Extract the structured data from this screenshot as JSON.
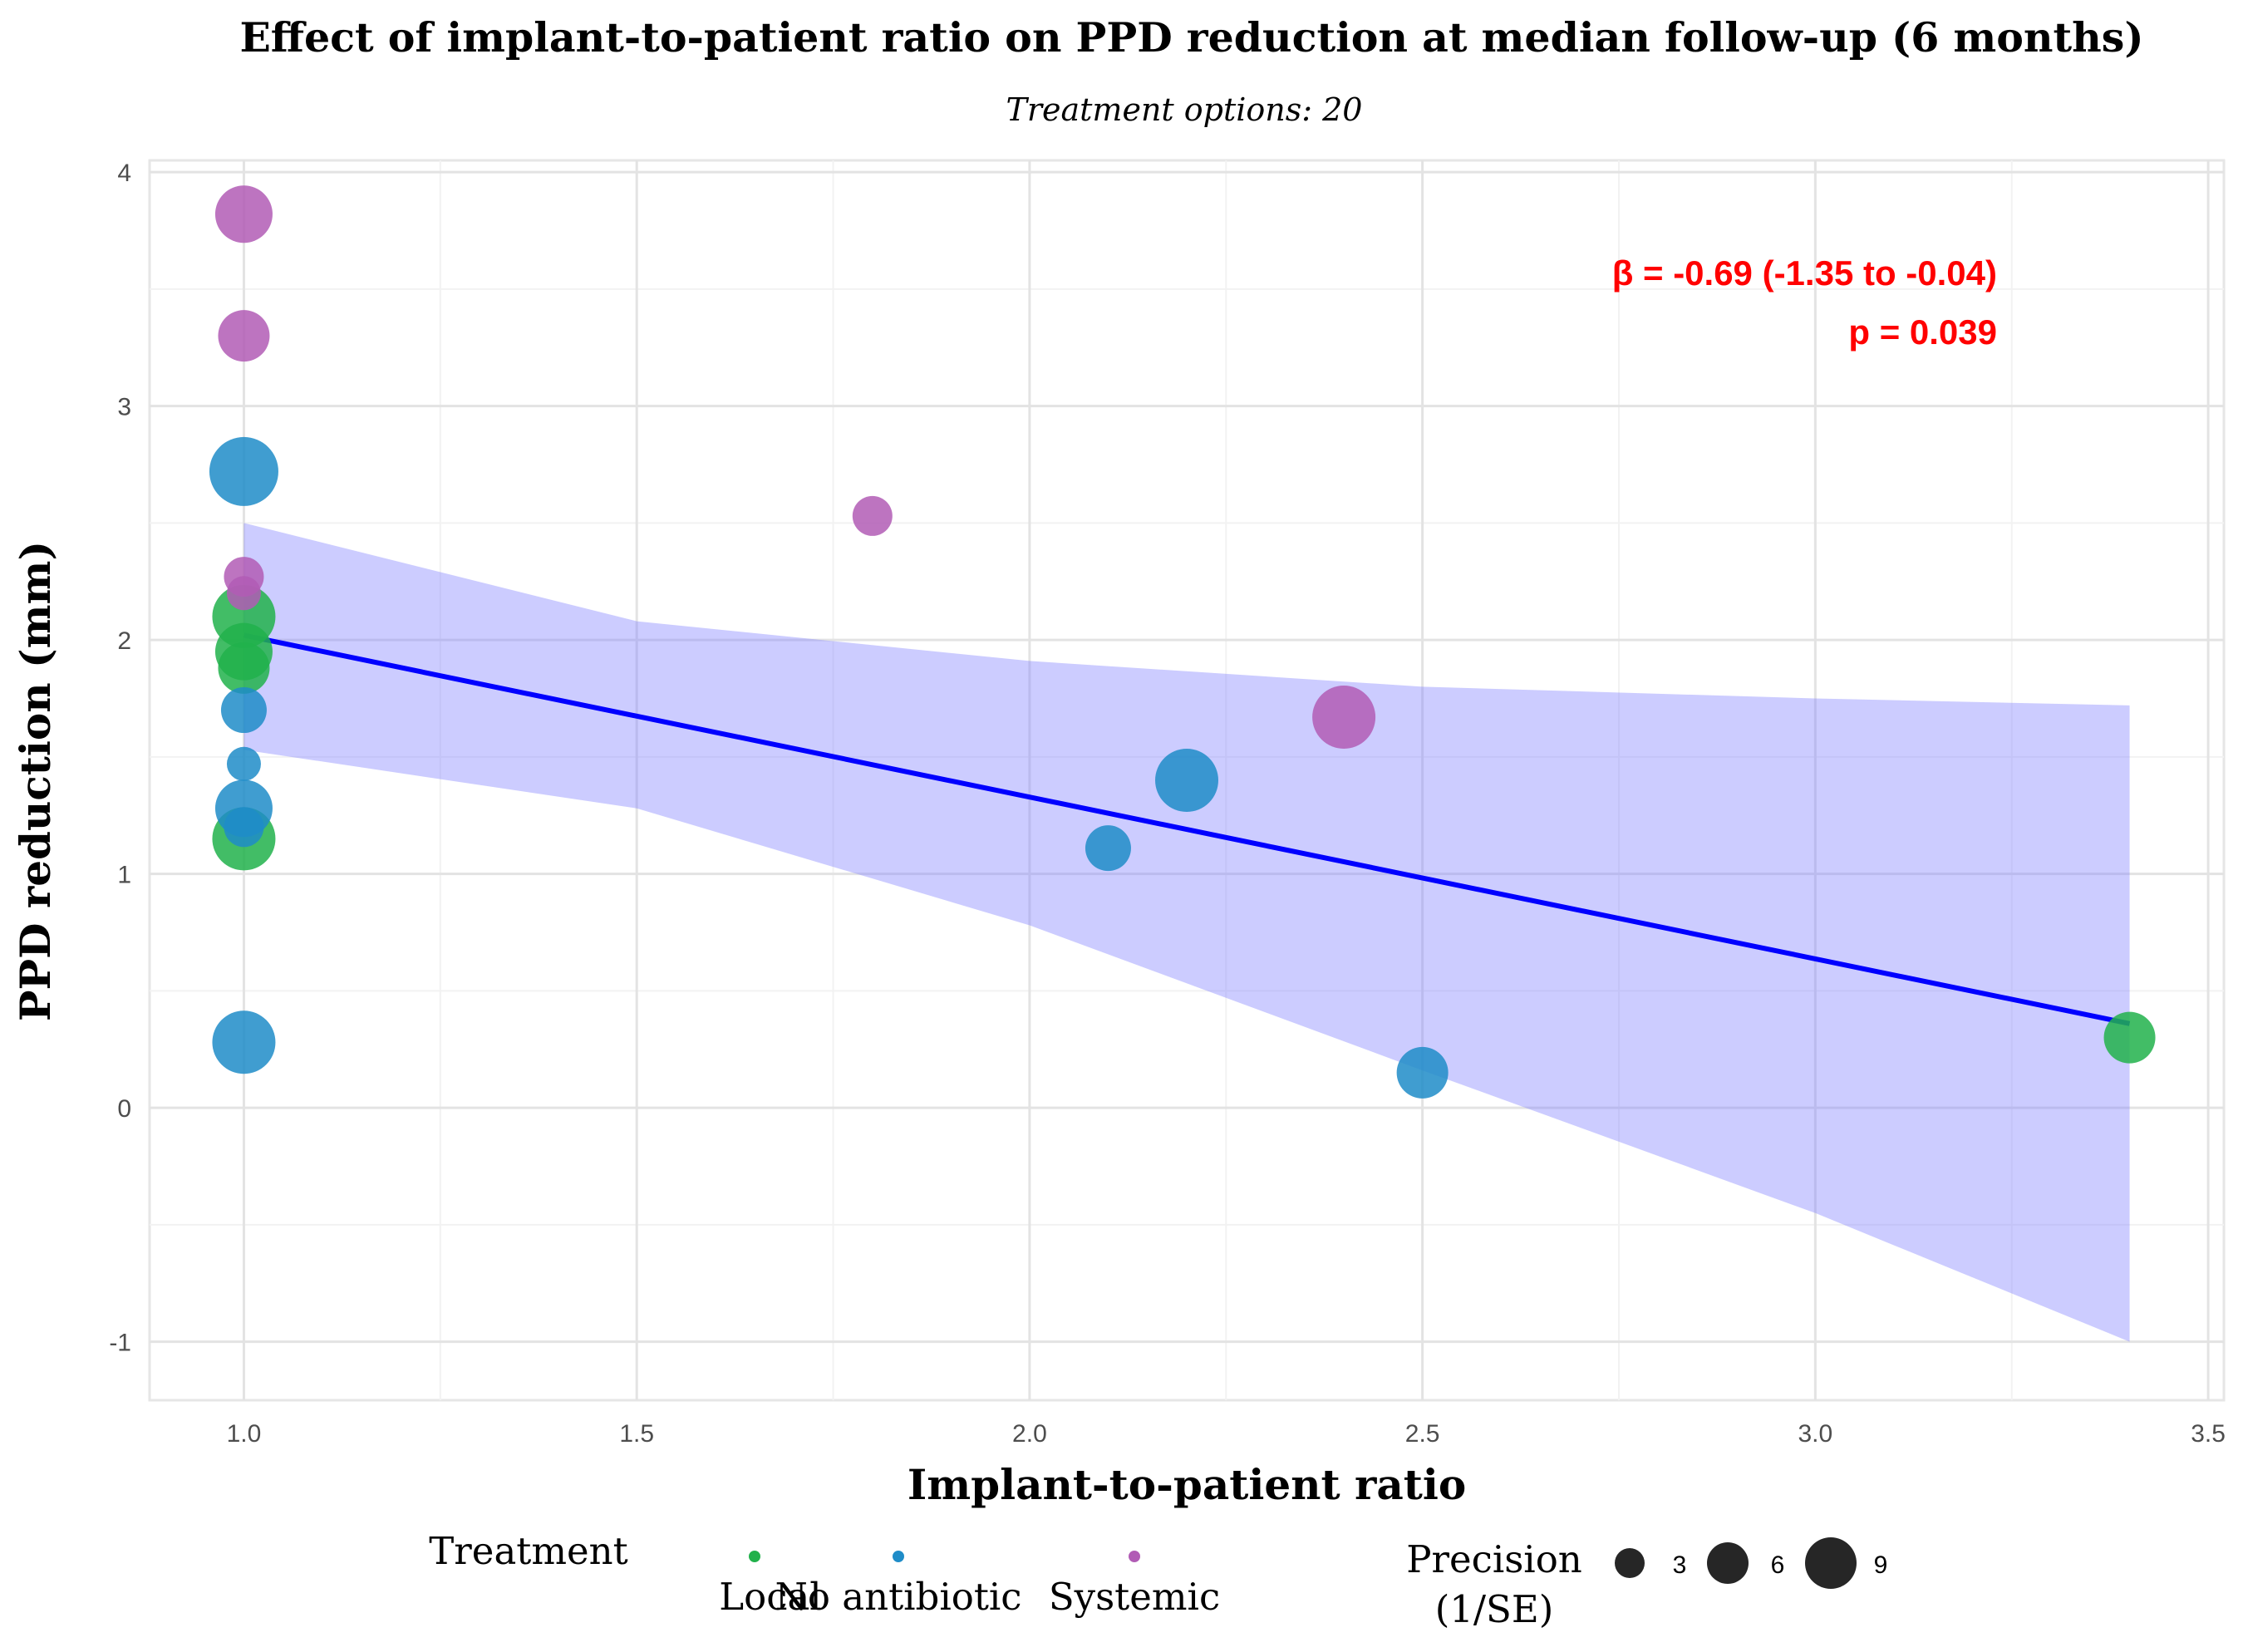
{
  "chart_data": {
    "type": "scatter",
    "title": "Effect of implant-to-patient ratio on PPD reduction at median follow-up (6 months)",
    "subtitle": "Treatment options: 20",
    "xlabel": "Implant-to-patient ratio",
    "ylabel": "PPD reduction (mm)",
    "xlim": [
      0.88,
      3.52
    ],
    "ylim": [
      -1.25,
      4.05
    ],
    "xticks": [
      1.0,
      1.5,
      2.0,
      2.5,
      3.0,
      3.5
    ],
    "xtick_labels": [
      "1.0",
      "1.5",
      "2.0",
      "2.5",
      "3.0",
      "3.5"
    ],
    "yticks": [
      -1,
      0,
      1,
      2,
      3,
      4
    ],
    "ytick_labels": [
      "-1",
      "0",
      "1",
      "2",
      "3",
      "4"
    ],
    "grid": true,
    "annotation": {
      "line1": "β = -0.69 (-1.35 to -0.04)",
      "line2": "p = 0.039",
      "color": "#ff0000"
    },
    "regression": {
      "x": [
        1.0,
        3.4
      ],
      "y": [
        2.02,
        0.36
      ],
      "color": "#0000ff",
      "ci_color": "#8080ff",
      "ci_x": [
        1.0,
        1.5,
        2.0,
        2.5,
        3.0,
        3.4
      ],
      "ci_upper": [
        2.5,
        2.08,
        1.91,
        1.8,
        1.75,
        1.72
      ],
      "ci_lower": [
        1.53,
        1.28,
        0.78,
        0.16,
        -0.45,
        -1.0
      ]
    },
    "legend": {
      "treatment_title": "Treatment",
      "treatment_entries": [
        {
          "name": "Local",
          "color": "#21b14b"
        },
        {
          "name": "No antibiotic",
          "color": "#1f8cc8"
        },
        {
          "name": "Systemic",
          "color": "#b15cb5"
        }
      ],
      "size_title_line1": "Precision",
      "size_title_line2": "(1/SE)",
      "size_entries": [
        {
          "label": "3",
          "value": 3
        },
        {
          "label": "6",
          "value": 6
        },
        {
          "label": "9",
          "value": 9
        }
      ],
      "placement": "bottom"
    },
    "series": [
      {
        "name": "Local",
        "color": "#21b14b",
        "points": [
          {
            "x": 1.0,
            "y": 2.1,
            "precision": 8
          },
          {
            "x": 1.0,
            "y": 1.95,
            "precision": 7
          },
          {
            "x": 1.0,
            "y": 1.88,
            "precision": 6
          },
          {
            "x": 1.0,
            "y": 1.15,
            "precision": 8
          },
          {
            "x": 3.4,
            "y": 0.3,
            "precision": 6
          }
        ]
      },
      {
        "name": "No antibiotic",
        "color": "#1f8cc8",
        "points": [
          {
            "x": 1.0,
            "y": 2.72,
            "precision": 9
          },
          {
            "x": 1.0,
            "y": 1.7,
            "precision": 5
          },
          {
            "x": 1.0,
            "y": 1.47,
            "precision": 3
          },
          {
            "x": 1.0,
            "y": 1.28,
            "precision": 7
          },
          {
            "x": 1.0,
            "y": 1.2,
            "precision": 4
          },
          {
            "x": 1.0,
            "y": 0.28,
            "precision": 8
          },
          {
            "x": 2.1,
            "y": 1.11,
            "precision": 5
          },
          {
            "x": 2.2,
            "y": 1.4,
            "precision": 8
          },
          {
            "x": 2.5,
            "y": 0.15,
            "precision": 6
          }
        ]
      },
      {
        "name": "Systemic",
        "color": "#b15cb5",
        "points": [
          {
            "x": 1.0,
            "y": 3.82,
            "precision": 7
          },
          {
            "x": 1.0,
            "y": 3.3,
            "precision": 6
          },
          {
            "x": 1.0,
            "y": 2.27,
            "precision": 4
          },
          {
            "x": 1.0,
            "y": 2.2,
            "precision": 3
          },
          {
            "x": 1.8,
            "y": 2.53,
            "precision": 4
          },
          {
            "x": 2.4,
            "y": 1.67,
            "precision": 8
          }
        ]
      }
    ]
  }
}
